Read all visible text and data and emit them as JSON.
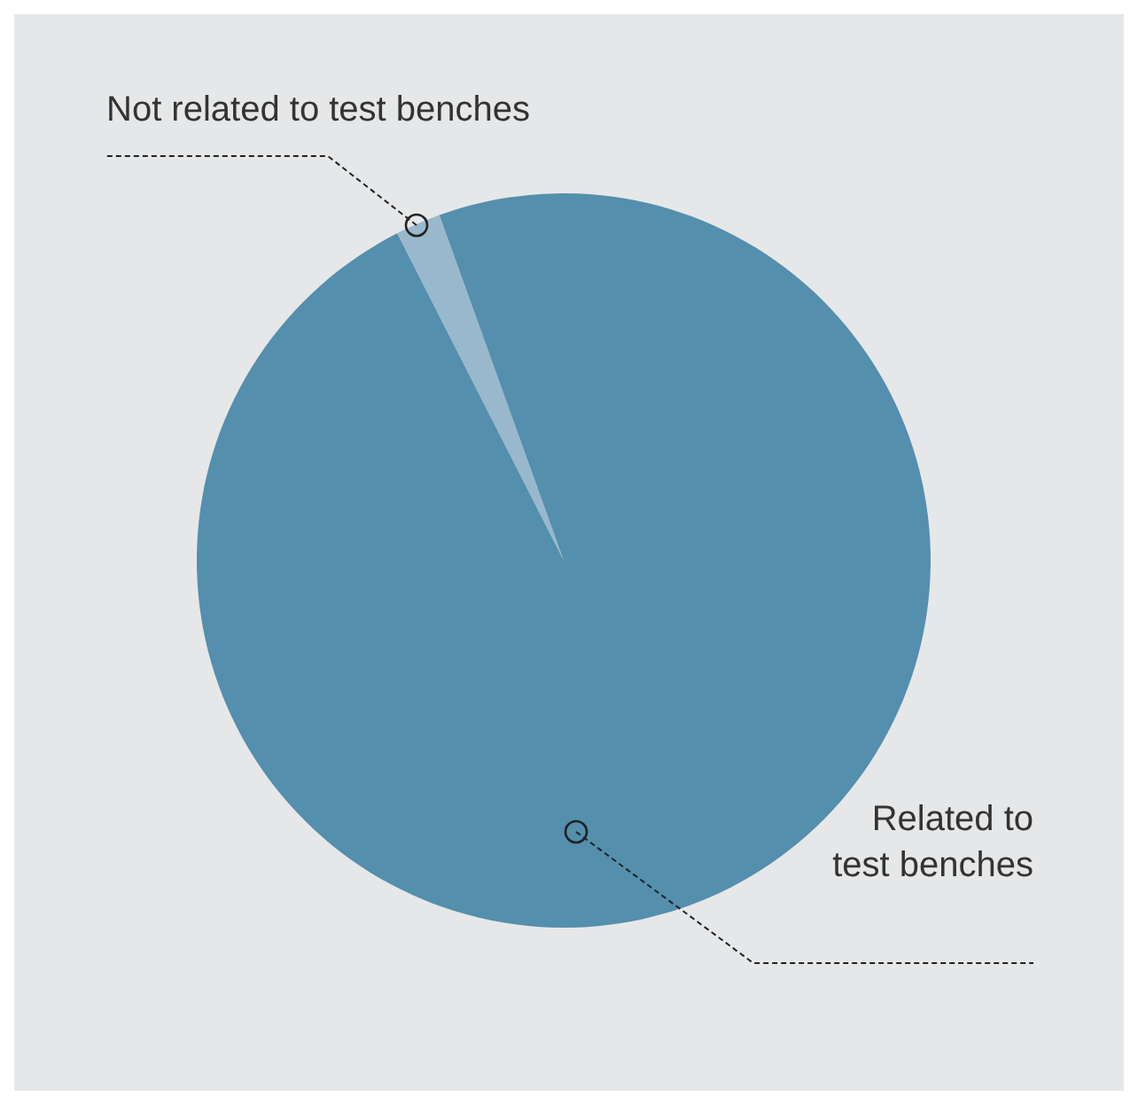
{
  "chart_data": {
    "type": "pie",
    "categories": [
      "Not related to test benches",
      "Related to test benches"
    ],
    "values": [
      2,
      98
    ],
    "colors": [
      "#9ab8cc",
      "#548fad"
    ]
  }
}
